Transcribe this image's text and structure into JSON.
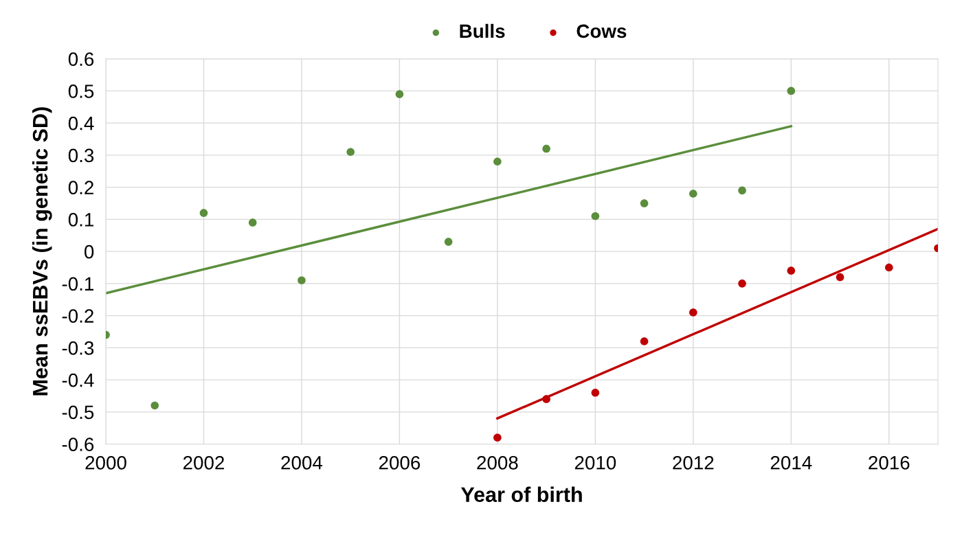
{
  "chart_data": {
    "type": "scatter",
    "xlabel": "Year of birth",
    "ylabel": "Mean ssEBVs (in genetic SD)",
    "xlim": [
      2000,
      2017
    ],
    "xticks": [
      2000,
      2002,
      2004,
      2006,
      2008,
      2010,
      2012,
      2014,
      2016
    ],
    "ylim": [
      -0.6,
      0.6
    ],
    "yticks": [
      -0.6,
      -0.5,
      -0.4,
      -0.3,
      -0.2,
      -0.1,
      0,
      0.1,
      0.2,
      0.3,
      0.4,
      0.5,
      0.6
    ],
    "grid": true,
    "legend": "top",
    "marker": "circle",
    "series": [
      {
        "name": "Bulls",
        "color": "#5b8e3c",
        "x": [
          2000,
          2001,
          2002,
          2003,
          2004,
          2005,
          2006,
          2007,
          2008,
          2009,
          2010,
          2011,
          2012,
          2013,
          2014
        ],
        "values": [
          -0.26,
          -0.48,
          0.12,
          0.09,
          -0.09,
          0.31,
          0.49,
          0.03,
          0.28,
          0.32,
          0.11,
          0.15,
          0.18,
          0.19,
          0.5
        ]
      },
      {
        "name": "Cows",
        "color": "#c00000",
        "x": [
          2008,
          2009,
          2010,
          2011,
          2012,
          2013,
          2014,
          2015,
          2016,
          2017
        ],
        "values": [
          -0.58,
          -0.46,
          -0.44,
          -0.28,
          -0.19,
          -0.1,
          -0.06,
          -0.08,
          -0.05,
          0.01
        ]
      },
      {
        "type": "line",
        "marker": "none",
        "color": "#5b8e3c",
        "x": [
          2000,
          2014
        ],
        "values": [
          -0.13,
          0.39
        ]
      },
      {
        "type": "line",
        "marker": "none",
        "color": "#c00000",
        "x": [
          2008,
          2017
        ],
        "values": [
          -0.52,
          0.07
        ]
      }
    ]
  }
}
